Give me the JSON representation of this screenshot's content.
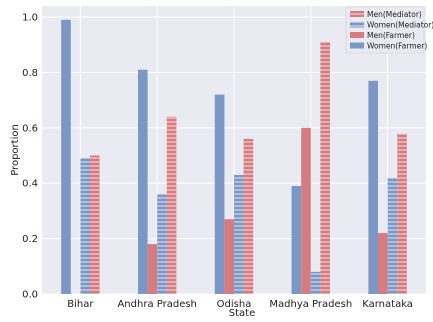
{
  "chart_data": {
    "type": "bar",
    "xlabel": "State",
    "ylabel": "Proportion",
    "ylim": [
      0,
      1.04
    ],
    "yticks": [
      0.0,
      0.2,
      0.4,
      0.6,
      0.8,
      1.0
    ],
    "ytick_labels": [
      "0.0",
      "0.2",
      "0.4",
      "0.6",
      "0.8",
      "1.0"
    ],
    "categories": [
      "Bihar",
      "Andhra Pradesh",
      "Odisha",
      "Madhya Pradesh",
      "Karnataka"
    ],
    "series": [
      {
        "name": "Women(Farmer)",
        "color": "#7b97c6",
        "hatch": "none",
        "values": [
          0.99,
          0.81,
          0.72,
          0.39,
          0.77
        ]
      },
      {
        "name": "Men(Farmer)",
        "color": "#d67b7f",
        "hatch": "none",
        "values": [
          0.0,
          0.18,
          0.27,
          0.6,
          0.22
        ]
      },
      {
        "name": "Women(Mediator)",
        "color": "#7b97c6",
        "hatch": "horizontal",
        "values": [
          0.49,
          0.36,
          0.43,
          0.08,
          0.42
        ]
      },
      {
        "name": "Men(Mediator)",
        "color": "#d67b7f",
        "hatch": "horizontal",
        "values": [
          0.5,
          0.64,
          0.56,
          0.91,
          0.58
        ]
      }
    ],
    "legend": {
      "position": "top-right",
      "order": [
        "Men(Mediator)",
        "Women(Mediator)",
        "Men(Farmer)",
        "Women(Farmer)"
      ]
    },
    "grid": true,
    "background": "#eaeaf2"
  }
}
